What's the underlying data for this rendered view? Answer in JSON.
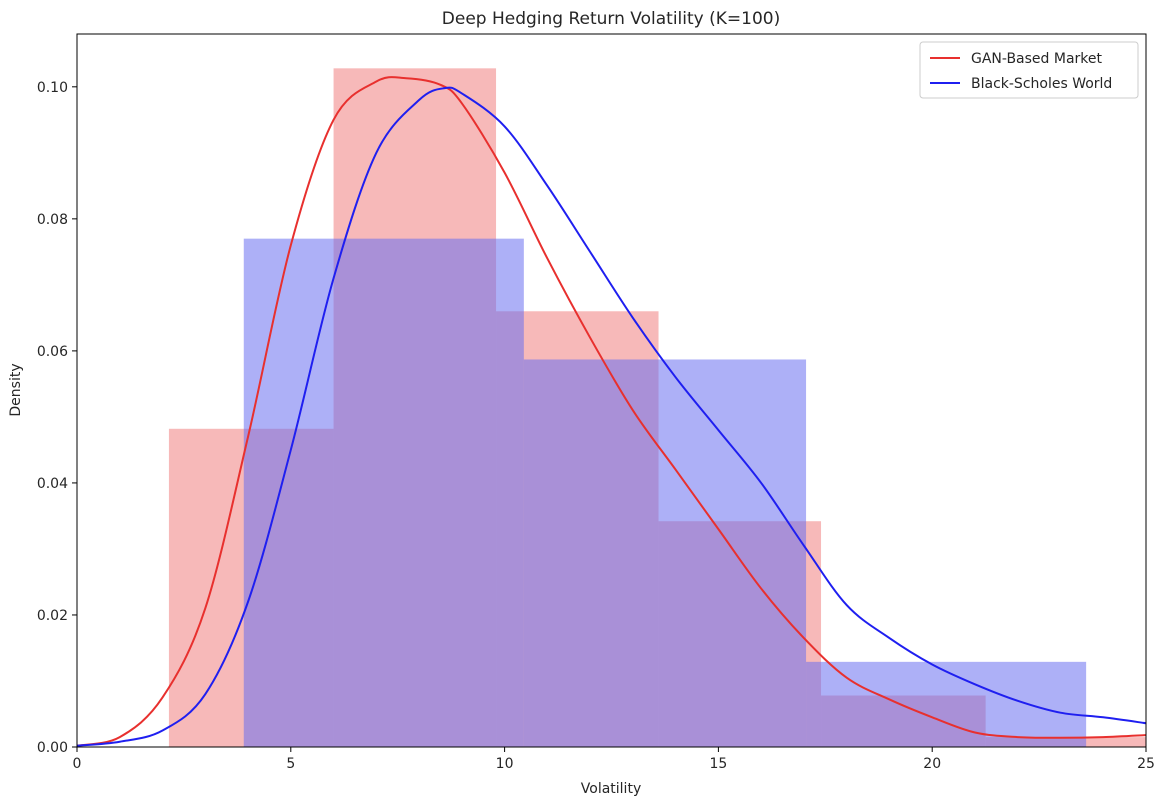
{
  "chart_data": {
    "type": "bar",
    "title": "Deep Hedging Return Volatility (K=100)",
    "xlabel": "Volatility",
    "ylabel": "Density",
    "xlim": [
      0,
      25
    ],
    "ylim": [
      0,
      0.108
    ],
    "xticks": [
      0,
      5,
      10,
      15,
      20,
      25
    ],
    "xtick_labels": [
      "0",
      "5",
      "10",
      "15",
      "20",
      "25"
    ],
    "yticks": [
      0.0,
      0.02,
      0.04,
      0.06,
      0.08,
      0.1
    ],
    "ytick_labels": [
      "0.00",
      "0.02",
      "0.04",
      "0.06",
      "0.08",
      "0.10"
    ],
    "grid": false,
    "legend_position": "top-right",
    "histograms": [
      {
        "name": "GAN-Based Market",
        "color": "#f08080",
        "bins": [
          {
            "x0": 2.15,
            "x1": 6.0,
            "density": 0.0482
          },
          {
            "x0": 6.0,
            "x1": 9.8,
            "density": 0.1028
          },
          {
            "x0": 9.8,
            "x1": 13.6,
            "density": 0.066
          },
          {
            "x0": 13.6,
            "x1": 17.4,
            "density": 0.0342
          },
          {
            "x0": 17.4,
            "x1": 21.25,
            "density": 0.0078
          },
          {
            "x0": 21.25,
            "x1": 25.0,
            "density": 0.0015
          }
        ]
      },
      {
        "name": "Black-Scholes World",
        "color": "#6a6ff0",
        "bins": [
          {
            "x0": 3.9,
            "x1": 10.45,
            "density": 0.077
          },
          {
            "x0": 10.45,
            "x1": 17.05,
            "density": 0.0587
          },
          {
            "x0": 17.05,
            "x1": 23.6,
            "density": 0.0129
          }
        ]
      }
    ],
    "series": [
      {
        "name": "GAN-Based Market",
        "color": "#e8302e",
        "x": [
          0,
          1,
          2,
          3,
          4,
          5,
          6,
          7,
          7.7,
          8.5,
          9,
          10,
          11,
          12,
          13,
          14,
          15,
          16,
          17,
          18,
          19,
          20,
          21,
          22,
          23,
          24,
          25
        ],
        "y": [
          0.0002,
          0.0015,
          0.0075,
          0.021,
          0.047,
          0.076,
          0.095,
          0.1008,
          0.1013,
          0.1003,
          0.0975,
          0.087,
          0.074,
          0.062,
          0.051,
          0.042,
          0.033,
          0.024,
          0.0165,
          0.0105,
          0.0072,
          0.0045,
          0.0022,
          0.0015,
          0.0014,
          0.0015,
          0.0018
        ]
      },
      {
        "name": "Black-Scholes World",
        "color": "#1f1ff0",
        "x": [
          0,
          1,
          2,
          3,
          4,
          5,
          6,
          7,
          8,
          8.6,
          9,
          10,
          11,
          12,
          13,
          14,
          15,
          16,
          17,
          18,
          19,
          20,
          21,
          22,
          23,
          24,
          25
        ],
        "y": [
          0.0002,
          0.0008,
          0.0025,
          0.008,
          0.022,
          0.045,
          0.071,
          0.09,
          0.098,
          0.0998,
          0.099,
          0.094,
          0.085,
          0.075,
          0.065,
          0.056,
          0.048,
          0.04,
          0.0305,
          0.0215,
          0.0165,
          0.0125,
          0.0095,
          0.007,
          0.0052,
          0.0045,
          0.0036
        ]
      }
    ]
  }
}
